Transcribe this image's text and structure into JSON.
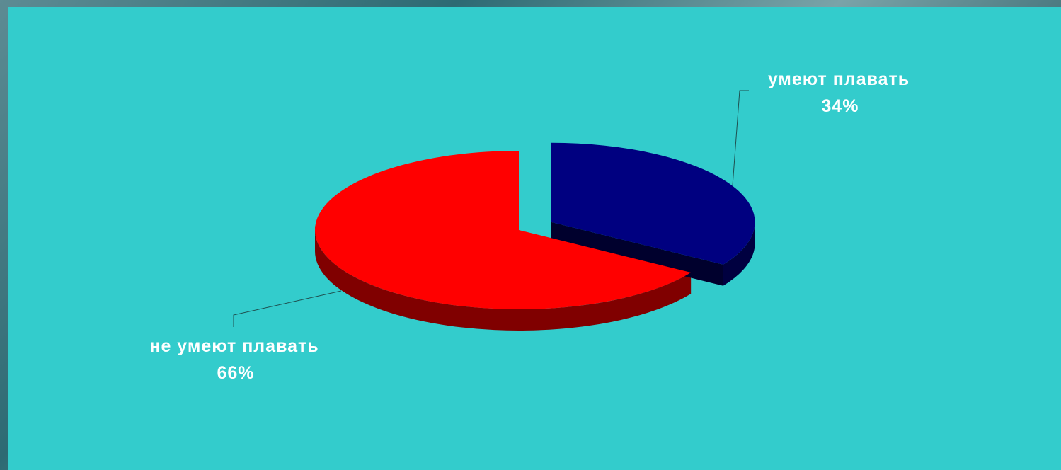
{
  "chart_data": {
    "type": "pie",
    "style": "3d-exploded",
    "title": "",
    "legend": "none",
    "slices": [
      {
        "category": "умеют плавать",
        "value": 34,
        "percent_label": "34%",
        "color": "#000080"
      },
      {
        "category": "не умеют плавать",
        "value": 66,
        "percent_label": "66%",
        "color": "#ff0000"
      }
    ]
  },
  "colors": {
    "plot_background": "#33cccc",
    "label_text": "#ffffff",
    "leader_line": "#1f4f4f"
  }
}
